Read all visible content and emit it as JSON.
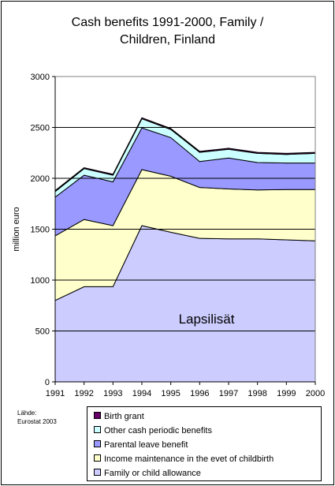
{
  "chart_data": {
    "type": "area",
    "title_lines": [
      "Cash benefits 1991-2000, Family /",
      "Children, Finland"
    ],
    "ylabel": "million euro",
    "xlabel": "",
    "ylim": [
      0,
      3000
    ],
    "yticks": [
      "0",
      "500",
      "1000",
      "1500",
      "2000",
      "2500",
      "3000"
    ],
    "categories": [
      "1991",
      "1992",
      "1993",
      "1994",
      "1995",
      "1996",
      "1997",
      "1998",
      "1999",
      "2000"
    ],
    "stacked": true,
    "grid": "major y lines",
    "legend_placement": "bottom",
    "series": [
      {
        "name": "Family or child allowance",
        "color": "#CCCCFF",
        "values": [
          800,
          935,
          935,
          1535,
          1470,
          1410,
          1405,
          1405,
          1395,
          1385
        ]
      },
      {
        "name": "Income maintenance in the evet of childbirth",
        "color": "#FFFFCC",
        "values": [
          635,
          660,
          600,
          550,
          550,
          500,
          490,
          480,
          495,
          505
        ]
      },
      {
        "name": "Parental leave benefit",
        "color": "#9999FF",
        "values": [
          380,
          435,
          430,
          410,
          380,
          255,
          305,
          270,
          260,
          260
        ]
      },
      {
        "name": "Other cash periodic benefits",
        "color": "#CCFFFF",
        "values": [
          55,
          65,
          65,
          90,
          80,
          90,
          85,
          90,
          85,
          95
        ]
      },
      {
        "name": "Birth grant",
        "color": "#660066",
        "values": [
          10,
          10,
          10,
          10,
          10,
          10,
          10,
          10,
          10,
          10
        ]
      }
    ],
    "annotation": "Lapsilisät"
  },
  "source_lines": [
    "Lähde:",
    "Eurostat 2003"
  ],
  "legend_order": [
    4,
    3,
    2,
    1,
    0
  ]
}
